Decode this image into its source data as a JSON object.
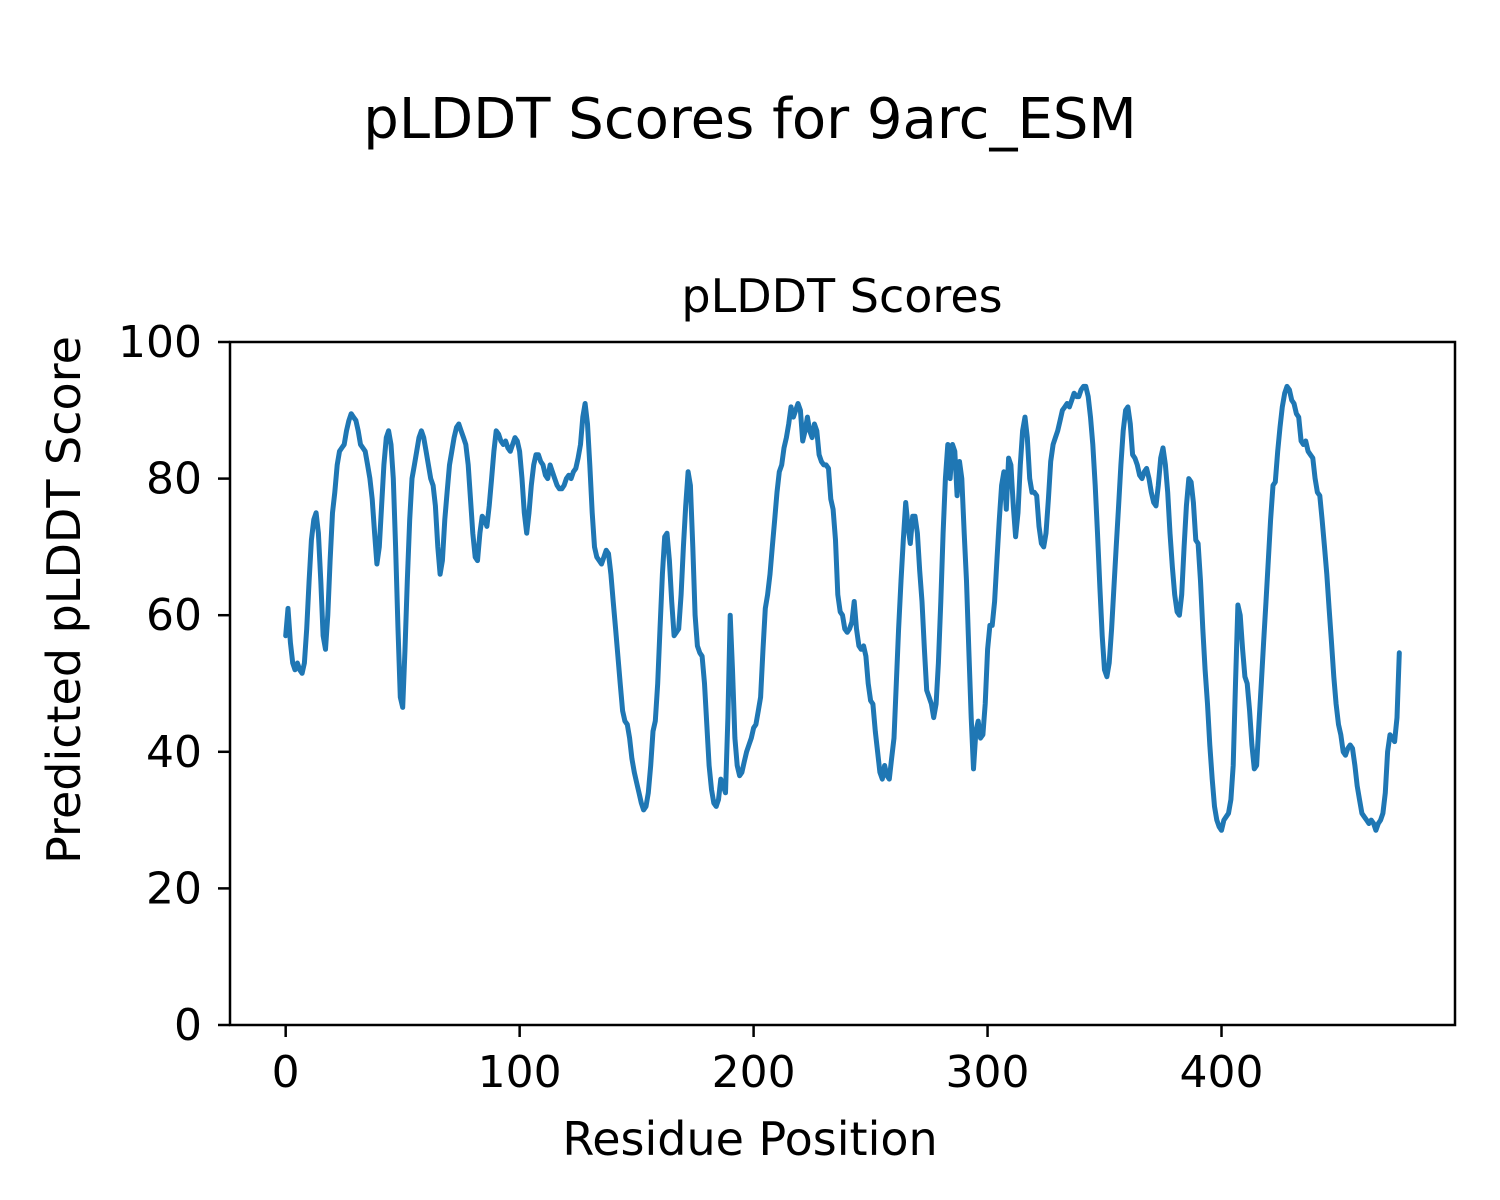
{
  "figure": {
    "suptitle": "pLDDT Scores for 9arc_ESM",
    "background": "#ffffff"
  },
  "chart_data": {
    "type": "line",
    "title": "pLDDT Scores",
    "xlabel": "Residue Position",
    "ylabel": "Predicted pLDDT Score",
    "legend": null,
    "grid": false,
    "line_color": "#1f77b4",
    "axis_color": "#000000",
    "x_ticks": [
      0,
      100,
      200,
      300,
      400
    ],
    "y_ticks": [
      0,
      20,
      40,
      60,
      80,
      100
    ],
    "xlim": [
      -23.8,
      499.8
    ],
    "ylim": [
      0,
      100
    ],
    "series": [
      {
        "name": "pLDDT",
        "x_start": 0,
        "x_step": 1,
        "values": [
          57,
          61,
          56,
          53,
          52,
          53,
          52,
          51.5,
          53,
          58,
          65,
          71,
          74,
          75,
          72,
          65,
          57,
          55,
          60,
          68,
          75,
          78,
          82,
          84,
          84.5,
          85,
          87,
          88.5,
          89.5,
          89,
          88.5,
          87,
          85,
          84.5,
          84,
          82,
          80,
          77,
          72,
          67.5,
          70,
          76,
          82,
          86,
          87,
          85,
          80,
          70,
          58,
          48,
          46.5,
          55,
          65,
          74,
          80,
          82,
          84,
          86,
          87,
          86,
          84,
          82,
          80,
          79,
          76,
          70,
          66,
          68,
          74,
          78,
          82,
          84,
          86,
          87.5,
          88,
          87,
          86,
          85,
          82,
          77,
          72,
          68.5,
          68,
          72,
          74.5,
          74,
          73,
          76,
          80,
          84,
          87,
          86.5,
          85.5,
          85,
          85.5,
          84.5,
          84,
          85,
          86,
          85.5,
          84,
          80,
          75,
          72,
          75,
          79,
          82,
          83.5,
          83.5,
          82.5,
          82,
          80.5,
          80,
          82,
          81,
          80,
          79,
          78.5,
          78.5,
          79,
          80,
          80.5,
          80,
          81,
          81.5,
          83,
          85,
          89,
          91,
          88,
          82,
          75,
          70,
          68.5,
          68,
          67.5,
          68.5,
          69.5,
          69,
          66,
          62,
          58,
          54,
          50,
          46,
          44.5,
          44,
          42,
          39,
          37,
          35.5,
          34,
          32.5,
          31.5,
          32,
          34,
          38,
          43,
          44.5,
          50,
          58,
          66,
          71.5,
          72,
          68,
          62,
          57,
          57.5,
          58,
          63,
          70,
          76,
          81,
          79,
          70,
          60,
          55.5,
          54.5,
          54,
          50,
          44,
          38,
          34.5,
          32.5,
          32,
          33,
          36,
          35,
          34,
          45,
          60,
          52,
          42,
          38,
          36.5,
          37,
          38.5,
          40,
          41,
          42,
          43.5,
          44,
          46,
          48,
          55,
          61,
          63,
          66,
          70,
          74,
          78,
          81,
          82,
          84.5,
          86,
          88,
          90.5,
          89,
          90,
          91,
          90,
          85.5,
          87,
          89,
          87,
          86,
          88,
          87,
          83.5,
          82.5,
          82,
          82,
          81.5,
          77,
          75.5,
          71,
          63,
          60.5,
          60,
          58,
          57.5,
          58,
          59,
          62,
          58,
          55.5,
          55,
          55.5,
          54,
          50,
          47.5,
          47,
          43,
          40,
          37,
          36,
          38,
          36.5,
          36,
          39,
          42,
          50,
          58,
          65,
          71,
          76.5,
          73,
          70.5,
          74.5,
          74.5,
          72,
          66.5,
          62,
          55,
          49,
          48,
          47,
          45,
          47,
          53,
          62,
          72,
          80,
          85,
          80,
          85,
          84,
          77.5,
          82.5,
          80,
          72,
          65,
          55,
          45,
          37.5,
          43,
          44.5,
          42,
          42.5,
          47,
          55,
          58.5,
          58.5,
          62,
          68,
          74,
          79,
          81,
          75.5,
          83,
          82,
          76,
          71.5,
          75,
          82,
          87,
          89,
          86,
          80,
          78,
          78,
          77.5,
          73,
          70.5,
          70,
          72,
          77,
          82.5,
          85,
          86,
          87,
          88.5,
          90,
          90.5,
          91,
          90.5,
          91.5,
          92.5,
          92,
          92,
          93,
          93.5,
          93.5,
          92,
          89,
          85,
          79,
          72,
          64,
          57,
          52,
          51,
          53,
          58,
          64,
          70,
          76,
          82,
          87,
          90,
          90.5,
          88,
          83.5,
          83,
          82,
          80.5,
          80,
          81,
          81.5,
          80,
          78,
          76.5,
          76,
          79,
          83,
          84.5,
          82,
          78,
          72,
          67,
          63,
          60.5,
          60,
          63,
          70,
          76,
          80,
          79.5,
          76.5,
          71,
          70.5,
          65,
          58,
          52,
          47,
          41,
          36,
          32,
          30,
          29,
          28.5,
          30,
          30.5,
          31,
          33,
          38,
          50,
          61.5,
          60,
          55,
          51,
          50,
          46,
          41,
          37.5,
          38,
          44,
          50,
          56,
          62,
          68,
          74,
          79,
          79.5,
          84,
          87.5,
          90.5,
          92.5,
          93.5,
          93,
          91.5,
          91,
          89.5,
          89,
          85.5,
          85,
          85.5,
          84,
          83.5,
          83,
          80,
          78,
          77.5,
          74,
          70,
          66,
          61,
          56,
          51,
          47,
          44,
          42.5,
          40,
          39.5,
          40.5,
          41,
          40.5,
          38,
          35,
          33,
          31,
          30.5,
          30,
          29.5,
          30,
          29.5,
          28.5,
          29.5,
          30,
          31,
          34,
          40,
          42.5,
          42,
          41.5,
          45,
          54.5
        ]
      }
    ]
  }
}
